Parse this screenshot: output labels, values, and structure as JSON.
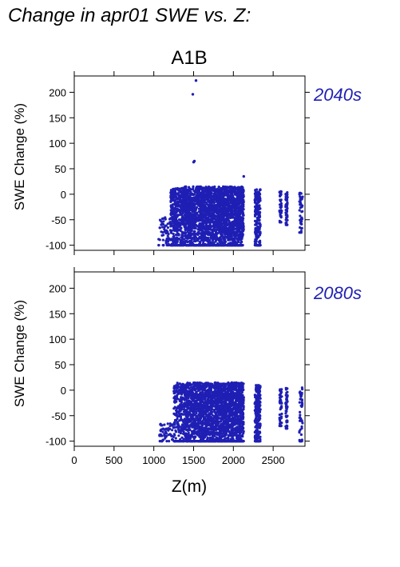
{
  "title": "Change in apr01 SWE vs. Z:",
  "point_color": "#1f1fb4",
  "chart_data": [
    {
      "type": "scatter",
      "scenario": "A1B",
      "period_label": "2040s",
      "xlabel": "",
      "ylabel": "SWE Change (%)",
      "xlim": [
        0,
        2900
      ],
      "ylim": [
        -110,
        232
      ],
      "yticks": [
        "-100",
        "-50",
        "0",
        "50",
        "100",
        "150",
        "200"
      ],
      "outliers": [
        [
          1530,
          223
        ],
        [
          1490,
          196
        ],
        [
          1510,
          65
        ],
        [
          1500,
          63
        ],
        [
          2130,
          35
        ]
      ],
      "clusters": [
        {
          "x": [
            1060,
            1220
          ],
          "y": [
            -100,
            -45
          ],
          "n": 70
        },
        {
          "x": [
            1210,
            1350
          ],
          "y": [
            -100,
            12
          ],
          "n": 320
        },
        {
          "x": [
            1350,
            1800
          ],
          "y": [
            -100,
            15
          ],
          "n": 1400
        },
        {
          "x": [
            1800,
            2130
          ],
          "y": [
            -100,
            15
          ],
          "n": 1200
        },
        {
          "x": [
            2270,
            2340
          ],
          "y": [
            -100,
            10
          ],
          "n": 240
        },
        {
          "x": [
            2580,
            2610
          ],
          "y": [
            -55,
            8
          ],
          "n": 45
        },
        {
          "x": [
            2655,
            2680
          ],
          "y": [
            -60,
            5
          ],
          "n": 50
        },
        {
          "x": [
            2830,
            2870
          ],
          "y": [
            -75,
            8
          ],
          "n": 50
        }
      ]
    },
    {
      "type": "scatter",
      "scenario": "",
      "period_label": "2080s",
      "xlabel": "Z(m)",
      "ylabel": "SWE Change (%)",
      "xlim": [
        0,
        2900
      ],
      "ylim": [
        -110,
        232
      ],
      "xticks": [
        "0",
        "500",
        "1000",
        "1500",
        "2000",
        "2500"
      ],
      "yticks": [
        "-100",
        "-50",
        "0",
        "50",
        "100",
        "150",
        "200"
      ],
      "outliers": [],
      "clusters": [
        {
          "x": [
            1070,
            1250
          ],
          "y": [
            -100,
            -65
          ],
          "n": 60
        },
        {
          "x": [
            1250,
            1400
          ],
          "y": [
            -100,
            15
          ],
          "n": 260
        },
        {
          "x": [
            1400,
            1800
          ],
          "y": [
            -100,
            15
          ],
          "n": 1200
        },
        {
          "x": [
            1800,
            2130
          ],
          "y": [
            -100,
            15
          ],
          "n": 1100
        },
        {
          "x": [
            2270,
            2340
          ],
          "y": [
            -100,
            10
          ],
          "n": 220
        },
        {
          "x": [
            2580,
            2610
          ],
          "y": [
            -70,
            10
          ],
          "n": 45
        },
        {
          "x": [
            2655,
            2680
          ],
          "y": [
            -75,
            5
          ],
          "n": 50
        },
        {
          "x": [
            2830,
            2870
          ],
          "y": [
            -100,
            5
          ],
          "n": 50
        }
      ]
    }
  ]
}
